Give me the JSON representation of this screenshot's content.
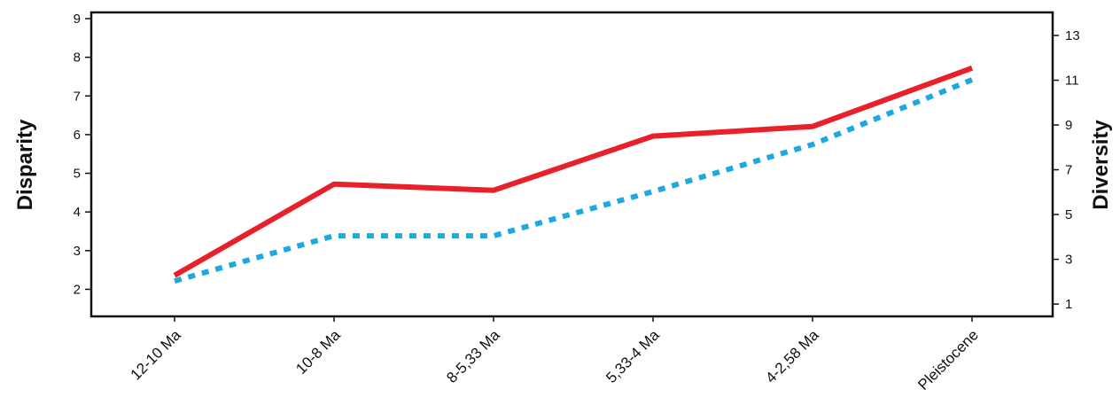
{
  "chart_data": {
    "type": "line",
    "categories": [
      "12-10 Ma",
      "10-8 Ma",
      "8-5,33 Ma",
      "5,33-4 Ma",
      "4-2,58 Ma",
      "Pleistocene"
    ],
    "y_label": "Disparity",
    "y2_label": "Diversity",
    "ylim": [
      1.3,
      9.16
    ],
    "yticks": [
      2,
      3,
      4,
      5,
      6,
      7,
      8,
      9
    ],
    "y2lim": [
      0.45,
      14.03
    ],
    "y2ticks": [
      1,
      3,
      5,
      7,
      9,
      11,
      13
    ],
    "series": [
      {
        "color": "#e8202a",
        "values": [
          2.36,
          4.72,
          4.56,
          5.96,
          6.21,
          7.72
        ]
      },
      {
        "color": "#1ea8e0",
        "values": [
          2.03,
          4.05,
          4.05,
          6.03,
          8.13,
          11.02
        ],
        "axis": "y2",
        "dashed": true
      }
    ]
  }
}
